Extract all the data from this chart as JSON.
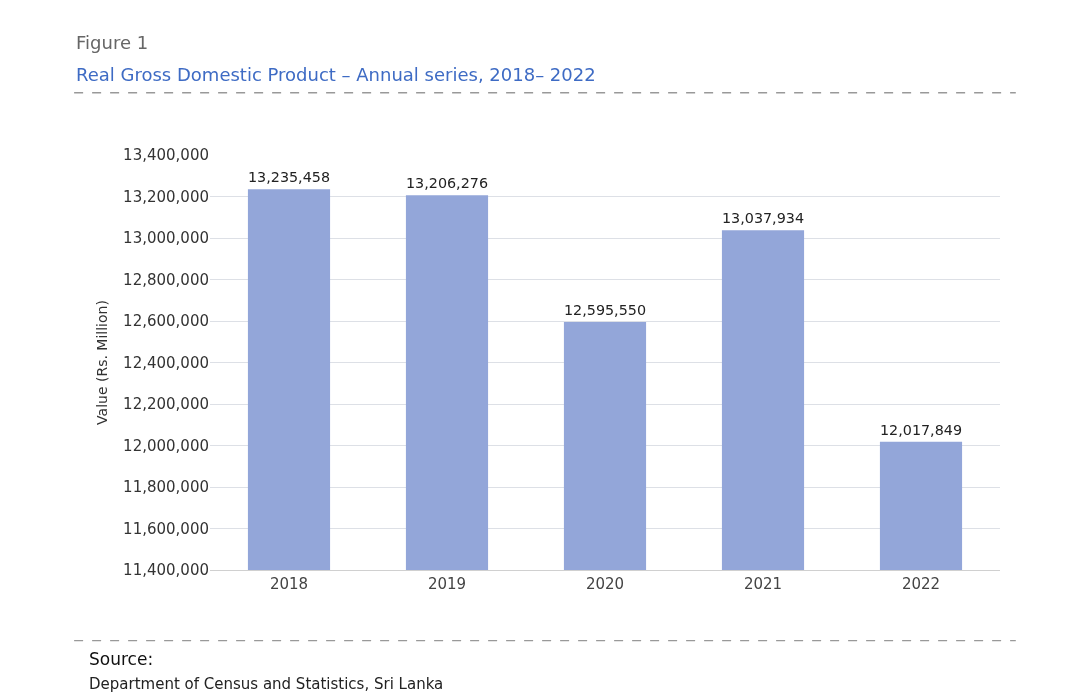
{
  "chart_data": {
    "type": "bar",
    "title": "Figure 1",
    "subtitle": "Real Gross Domestic Product – Annual series, 2018– 2022",
    "ylabel": "Value (Rs. Million)",
    "categories": [
      "2018",
      "2019",
      "2020",
      "2021",
      "2022"
    ],
    "values": [
      13235458,
      13206276,
      12595550,
      13037934,
      12017849
    ],
    "value_labels": [
      "13,235,458",
      "13,206,276",
      "12,595,550",
      "13,037,934",
      "12,017,849"
    ],
    "color": "#93a6d9",
    "ylim": [
      11400000,
      13400000
    ],
    "yticks": [
      {
        "value": 11400000,
        "label": "11,400,000"
      },
      {
        "value": 11600000,
        "label": "11,600,000"
      },
      {
        "value": 11800000,
        "label": "11,800,000"
      },
      {
        "value": 12000000,
        "label": "12,000,000"
      },
      {
        "value": 12200000,
        "label": "12,200,000"
      },
      {
        "value": 12400000,
        "label": "12,400,000"
      },
      {
        "value": 12600000,
        "label": "12,600,000"
      },
      {
        "value": 12800000,
        "label": "12,800,000"
      },
      {
        "value": 13000000,
        "label": "13,000,000"
      },
      {
        "value": 13200000,
        "label": "13,200,000"
      },
      {
        "value": 13400000,
        "label": "13,400,000"
      }
    ],
    "grid": "y",
    "annotations": [
      "Source:",
      "Department of Census and Statistics, Sri Lanka"
    ]
  }
}
